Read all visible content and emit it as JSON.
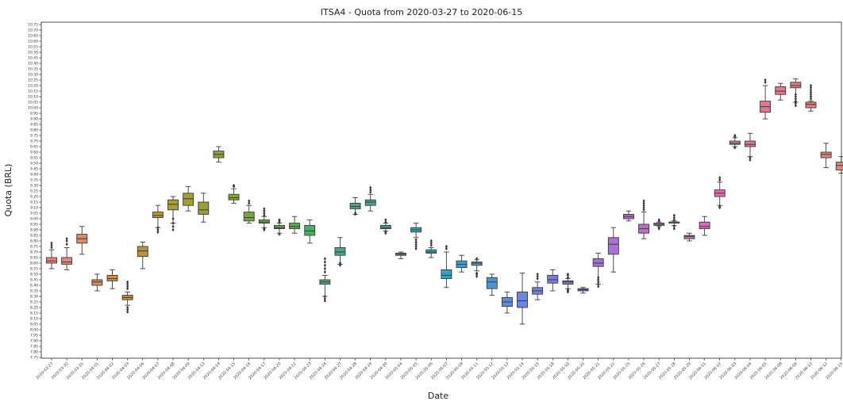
{
  "chart_data": {
    "type": "box",
    "title": "ITSA4 - Quota from 2020-03-27 to 2020-06-15",
    "xlabel": "Date",
    "ylabel": "Quota (BRL)",
    "ylim": [
      7.75,
      10.75
    ],
    "yticks": [
      "7.75",
      "7.80",
      "7.85",
      "7.90",
      "7.95",
      "8.00",
      "8.05",
      "8.10",
      "8.15",
      "8.20",
      "8.25",
      "8.30",
      "8.35",
      "8.40",
      "8.45",
      "8.50",
      "8.55",
      "8.60",
      "8.65",
      "8.70",
      "8.75",
      "8.80",
      "8.85",
      "8.90",
      "8.95",
      "9.00",
      "9.05",
      "9.10",
      "9.15",
      "9.20",
      "9.25",
      "9.30",
      "9.35",
      "9.40",
      "9.45",
      "9.50",
      "9.55",
      "9.60",
      "9.65",
      "9.70",
      "9.75",
      "9.80",
      "9.85",
      "9.90",
      "9.95",
      "10.00",
      "10.05",
      "10.10",
      "10.15",
      "10.20",
      "10.25",
      "10.30",
      "10.35",
      "10.40",
      "10.45",
      "10.50",
      "10.55",
      "10.60",
      "10.65",
      "10.70",
      "10.75"
    ],
    "grid": false,
    "categories": [
      "2020-03-27",
      "2020-03-30",
      "2020-03-31",
      "2020-04-01",
      "2020-04-02",
      "2020-04-03",
      "2020-04-06",
      "2020-04-07",
      "2020-04-08",
      "2020-04-09",
      "2020-04-13",
      "2020-04-14",
      "2020-04-15",
      "2020-04-16",
      "2020-04-17",
      "2020-04-20",
      "2020-04-22",
      "2020-04-23",
      "2020-04-24",
      "2020-04-27",
      "2020-04-28",
      "2020-04-29",
      "2020-04-30",
      "2020-05-04",
      "2020-05-05",
      "2020-05-06",
      "2020-05-07",
      "2020-05-08",
      "2020-05-11",
      "2020-05-12",
      "2020-05-13",
      "2020-05-14",
      "2020-05-15",
      "2020-05-18",
      "2020-05-19",
      "2020-05-20",
      "2020-05-21",
      "2020-05-22",
      "2020-05-25",
      "2020-05-26",
      "2020-05-27",
      "2020-05-28",
      "2020-05-29",
      "2020-06-01",
      "2020-06-02",
      "2020-06-03",
      "2020-06-04",
      "2020-06-05",
      "2020-06-08",
      "2020-06-09",
      "2020-06-10",
      "2020-06-12",
      "2020-06-15"
    ],
    "boxes": [
      {
        "whislo": 8.55,
        "q1": 8.6,
        "med": 8.62,
        "q3": 8.65,
        "whishi": 8.72,
        "fliers": [
          8.74,
          8.76,
          8.78
        ]
      },
      {
        "whislo": 8.54,
        "q1": 8.59,
        "med": 8.61,
        "q3": 8.65,
        "whishi": 8.74,
        "fliers": [
          8.77,
          8.8,
          8.82
        ]
      },
      {
        "whislo": 8.68,
        "q1": 8.78,
        "med": 8.82,
        "q3": 8.86,
        "whishi": 8.93,
        "fliers": []
      },
      {
        "whislo": 8.35,
        "q1": 8.4,
        "med": 8.43,
        "q3": 8.45,
        "whishi": 8.5,
        "fliers": []
      },
      {
        "whislo": 8.37,
        "q1": 8.44,
        "med": 8.46,
        "q3": 8.49,
        "whishi": 8.54,
        "fliers": []
      },
      {
        "whislo": 8.22,
        "q1": 8.27,
        "med": 8.29,
        "q3": 8.31,
        "whishi": 8.34,
        "fliers": [
          8.2,
          8.18,
          8.16,
          8.37,
          8.39,
          8.41,
          8.43
        ]
      },
      {
        "whislo": 8.55,
        "q1": 8.66,
        "med": 8.71,
        "q3": 8.75,
        "whishi": 8.79,
        "fliers": []
      },
      {
        "whislo": 8.92,
        "q1": 9.01,
        "med": 9.03,
        "q3": 9.06,
        "whishi": 9.12,
        "fliers": [
          8.88,
          8.9,
          8.92
        ]
      },
      {
        "whislo": 8.96,
        "q1": 9.08,
        "med": 9.13,
        "q3": 9.17,
        "whishi": 9.2,
        "fliers": [
          8.9,
          8.93,
          8.96,
          9.0
        ]
      },
      {
        "whislo": 9.07,
        "q1": 9.12,
        "med": 9.18,
        "q3": 9.23,
        "whishi": 9.29,
        "fliers": []
      },
      {
        "whislo": 8.97,
        "q1": 9.04,
        "med": 9.08,
        "q3": 9.15,
        "whishi": 9.23,
        "fliers": []
      },
      {
        "whislo": 9.51,
        "q1": 9.55,
        "med": 9.58,
        "q3": 9.61,
        "whishi": 9.65,
        "fliers": []
      },
      {
        "whislo": 9.14,
        "q1": 9.17,
        "med": 9.19,
        "q3": 9.22,
        "whishi": 9.27,
        "fliers": [
          9.29,
          9.3
        ]
      },
      {
        "whislo": 8.96,
        "q1": 8.98,
        "med": 9.01,
        "q3": 9.06,
        "whishi": 9.12,
        "fliers": [
          9.14,
          9.16
        ]
      },
      {
        "whislo": 8.92,
        "q1": 8.96,
        "med": 8.97,
        "q3": 8.99,
        "whishi": 9.02,
        "fliers": [
          8.9,
          8.91,
          9.03,
          9.05,
          9.07,
          9.09
        ]
      },
      {
        "whislo": 8.87,
        "q1": 8.91,
        "med": 8.92,
        "q3": 8.94,
        "whishi": 8.96,
        "fliers": [
          8.86,
          8.97,
          8.98,
          8.99
        ]
      },
      {
        "whislo": 8.87,
        "q1": 8.91,
        "med": 8.93,
        "q3": 8.96,
        "whishi": 9.02,
        "fliers": []
      },
      {
        "whislo": 8.78,
        "q1": 8.85,
        "med": 8.89,
        "q3": 8.94,
        "whishi": 8.99,
        "fliers": []
      },
      {
        "whislo": 8.3,
        "q1": 8.41,
        "med": 8.43,
        "q3": 8.45,
        "whishi": 8.49,
        "fliers": [
          8.26,
          8.28,
          8.3,
          8.52,
          8.55,
          8.58,
          8.61,
          8.64
        ]
      },
      {
        "whislo": 8.59,
        "q1": 8.67,
        "med": 8.7,
        "q3": 8.74,
        "whishi": 8.83,
        "fliers": [
          8.58,
          8.6
        ]
      },
      {
        "whislo": 9.04,
        "q1": 9.09,
        "med": 9.11,
        "q3": 9.14,
        "whishi": 9.19,
        "fliers": [
          9.04,
          9.05
        ]
      },
      {
        "whislo": 9.07,
        "q1": 9.12,
        "med": 9.15,
        "q3": 9.17,
        "whishi": 9.22,
        "fliers": [
          9.24,
          9.26,
          9.28
        ]
      },
      {
        "whislo": 8.89,
        "q1": 8.91,
        "med": 8.92,
        "q3": 8.94,
        "whishi": 8.96,
        "fliers": [
          8.87,
          8.88,
          8.97,
          8.99
        ]
      },
      {
        "whislo": 8.64,
        "q1": 8.67,
        "med": 8.68,
        "q3": 8.69,
        "whishi": 8.7,
        "fliers": []
      },
      {
        "whislo": 8.83,
        "q1": 8.88,
        "med": 8.9,
        "q3": 8.92,
        "whishi": 8.96,
        "fliers": [
          8.73,
          8.75,
          8.77,
          8.79,
          8.81
        ]
      },
      {
        "whislo": 8.65,
        "q1": 8.69,
        "med": 8.7,
        "q3": 8.72,
        "whishi": 8.74,
        "fliers": [
          8.76,
          8.78,
          8.8
        ]
      },
      {
        "whislo": 8.38,
        "q1": 8.46,
        "med": 8.49,
        "q3": 8.54,
        "whishi": 8.7,
        "fliers": [
          8.73,
          8.75
        ]
      },
      {
        "whislo": 8.52,
        "q1": 8.56,
        "med": 8.59,
        "q3": 8.62,
        "whishi": 8.67,
        "fliers": []
      },
      {
        "whislo": 8.53,
        "q1": 8.58,
        "med": 8.6,
        "q3": 8.61,
        "whishi": 8.63,
        "fliers": [
          8.48,
          8.5,
          8.51,
          8.64
        ]
      },
      {
        "whislo": 8.31,
        "q1": 8.37,
        "med": 8.43,
        "q3": 8.47,
        "whishi": 8.5,
        "fliers": []
      },
      {
        "whislo": 8.15,
        "q1": 8.21,
        "med": 8.25,
        "q3": 8.29,
        "whishi": 8.34,
        "fliers": []
      },
      {
        "whislo": 8.05,
        "q1": 8.2,
        "med": 8.26,
        "q3": 8.34,
        "whishi": 8.51,
        "fliers": []
      },
      {
        "whislo": 8.27,
        "q1": 8.32,
        "med": 8.35,
        "q3": 8.38,
        "whishi": 8.43,
        "fliers": [
          8.46,
          8.48,
          8.5
        ]
      },
      {
        "whislo": 8.35,
        "q1": 8.42,
        "med": 8.45,
        "q3": 8.49,
        "whishi": 8.54,
        "fliers": []
      },
      {
        "whislo": 8.37,
        "q1": 8.41,
        "med": 8.43,
        "q3": 8.44,
        "whishi": 8.46,
        "fliers": [
          8.34,
          8.35,
          8.36,
          8.47,
          8.49,
          8.5
        ]
      },
      {
        "whislo": 8.33,
        "q1": 8.35,
        "med": 8.36,
        "q3": 8.37,
        "whishi": 8.38,
        "fliers": []
      },
      {
        "whislo": 8.41,
        "q1": 8.57,
        "med": 8.6,
        "q3": 8.64,
        "whishi": 8.69,
        "fliers": [
          8.39,
          8.41,
          8.43,
          8.45,
          8.47
        ]
      },
      {
        "whislo": 8.52,
        "q1": 8.68,
        "med": 8.77,
        "q3": 8.83,
        "whishi": 8.92,
        "fliers": []
      },
      {
        "whislo": 8.98,
        "q1": 9.0,
        "med": 9.02,
        "q3": 9.04,
        "whishi": 9.07,
        "fliers": []
      },
      {
        "whislo": 8.82,
        "q1": 8.87,
        "med": 8.91,
        "q3": 8.95,
        "whishi": 9.06,
        "fliers": [
          9.08,
          9.1,
          9.12,
          9.14,
          9.16
        ]
      },
      {
        "whislo": 8.93,
        "q1": 8.94,
        "med": 8.95,
        "q3": 8.96,
        "whishi": 8.97,
        "fliers": [
          8.91,
          8.92,
          8.98,
          8.99
        ]
      },
      {
        "whislo": 8.94,
        "q1": 8.96,
        "med": 8.97,
        "q3": 8.97,
        "whishi": 8.98,
        "fliers": [
          8.91,
          8.93,
          8.99,
          9.01,
          9.03
        ]
      },
      {
        "whislo": 8.8,
        "q1": 8.82,
        "med": 8.84,
        "q3": 8.85,
        "whishi": 8.87,
        "fliers": []
      },
      {
        "whislo": 8.85,
        "q1": 8.91,
        "med": 8.93,
        "q3": 8.97,
        "whishi": 9.02,
        "fliers": []
      },
      {
        "whislo": 9.12,
        "q1": 9.2,
        "med": 9.23,
        "q3": 9.26,
        "whishi": 9.33,
        "fliers": [
          9.1,
          9.11,
          9.35,
          9.37
        ]
      },
      {
        "whislo": 9.65,
        "q1": 9.67,
        "med": 9.68,
        "q3": 9.7,
        "whishi": 9.73,
        "fliers": [
          9.64,
          9.74,
          9.75
        ]
      },
      {
        "whislo": 9.56,
        "q1": 9.65,
        "med": 9.67,
        "q3": 9.7,
        "whishi": 9.77,
        "fliers": [
          9.53,
          9.55
        ]
      },
      {
        "whislo": 9.9,
        "q1": 9.96,
        "med": 10.01,
        "q3": 10.06,
        "whishi": 10.2,
        "fliers": [
          10.23,
          10.25
        ]
      },
      {
        "whislo": 10.07,
        "q1": 10.12,
        "med": 10.15,
        "q3": 10.19,
        "whishi": 10.22,
        "fliers": []
      },
      {
        "whislo": 10.05,
        "q1": 10.18,
        "med": 10.2,
        "q3": 10.23,
        "whishi": 10.26,
        "fliers": [
          10.02,
          10.04,
          10.06,
          10.08,
          10.1,
          10.12
        ]
      },
      {
        "whislo": 9.97,
        "q1": 10.0,
        "med": 10.03,
        "q3": 10.05,
        "whishi": 10.06,
        "fliers": [
          10.08,
          10.1,
          10.12,
          10.14,
          10.16,
          10.18,
          10.2
        ]
      },
      {
        "whislo": 9.46,
        "q1": 9.55,
        "med": 9.58,
        "q3": 9.6,
        "whishi": 9.68,
        "fliers": []
      },
      {
        "whislo": 9.41,
        "q1": 9.44,
        "med": 9.48,
        "q3": 9.51,
        "whishi": 9.56,
        "fliers": []
      }
    ],
    "colors": [
      "#e8857a",
      "#e0897c",
      "#d88d6c",
      "#d58e5c",
      "#cf8f4d",
      "#c48f3d",
      "#bd9237",
      "#b79832",
      "#ad9c31",
      "#a29f31",
      "#98a031",
      "#8ea233",
      "#85a535",
      "#7aa739",
      "#6da83e",
      "#60aa47",
      "#56ab54",
      "#4dab63",
      "#48ab71",
      "#45aa7e",
      "#42a98a",
      "#3fa895",
      "#3ca79f",
      "#3aa6a8",
      "#38a5b1",
      "#37a3b9",
      "#38a0c2",
      "#3c9dcb",
      "#4398d3",
      "#4d93da",
      "#5a8ddf",
      "#6787e1",
      "#7481e1",
      "#817be0",
      "#8d77df",
      "#9874dd",
      "#a371db",
      "#ad6fd8",
      "#b76dd4",
      "#c06bd0",
      "#c86acb",
      "#d069c5",
      "#d769be",
      "#dc6ab6",
      "#e06cad",
      "#e36ea4",
      "#e5709b",
      "#e67392",
      "#e67689",
      "#e67a81",
      "#e67d7a",
      "#e58074",
      "#e5846f"
    ]
  }
}
